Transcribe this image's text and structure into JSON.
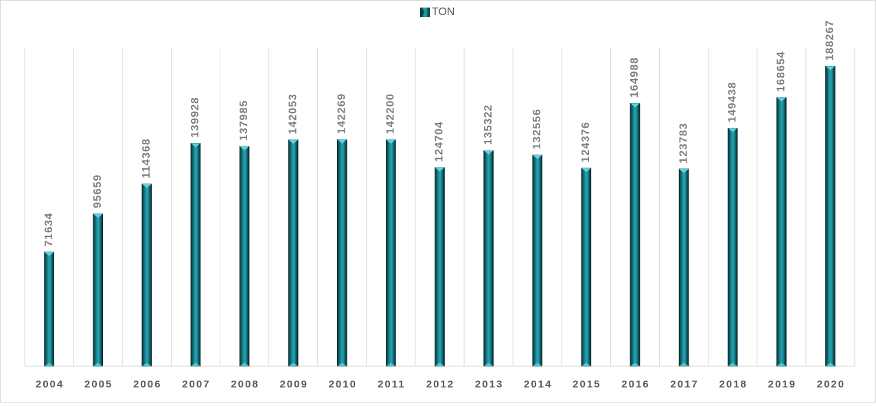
{
  "chart_data": {
    "type": "bar",
    "categories": [
      "2004",
      "2005",
      "2006",
      "2007",
      "2008",
      "2009",
      "2010",
      "2011",
      "2012",
      "2013",
      "2014",
      "2015",
      "2016",
      "2017",
      "2018",
      "2019",
      "2020"
    ],
    "series": [
      {
        "name": "TON",
        "color": "#1f9eab",
        "values": [
          71634,
          95659,
          114368,
          139928,
          137985,
          142053,
          142269,
          142200,
          124704,
          135322,
          132556,
          124376,
          164988,
          123783,
          149438,
          168654,
          188267
        ]
      }
    ],
    "ylim": [
      0,
      200000
    ],
    "legend": "top"
  }
}
